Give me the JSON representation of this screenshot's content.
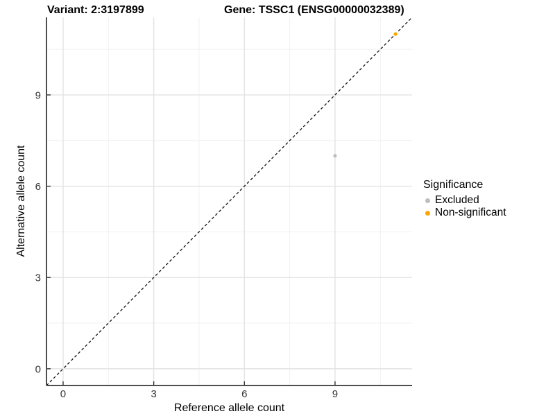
{
  "chart_data": {
    "type": "scatter",
    "titles": [
      "Variant: 2:3197899",
      "Gene: TSSC1 (ENSG00000032389)"
    ],
    "xlabel": "Reference allele count",
    "ylabel": "Alternative allele count",
    "xlim": [
      0,
      11
    ],
    "ylim": [
      0,
      11
    ],
    "expand_frac": 0.05,
    "major_ticks": [
      0,
      3,
      6,
      9
    ],
    "minor_ticks": [
      1.5,
      4.5,
      7.5,
      10.5
    ],
    "grid": "major+minor",
    "background": "#ffffff",
    "identity_line": {
      "slope": 1,
      "intercept": 0,
      "style": "dashed",
      "color": "#111111"
    },
    "legend": {
      "title": "Significance",
      "position": "right"
    },
    "series": [
      {
        "name": "Excluded",
        "color": "#BEBEBE",
        "points": [
          {
            "x": 9,
            "y": 7
          }
        ]
      },
      {
        "name": "Non-significant",
        "color": "#FFA500",
        "points": [
          {
            "x": 11,
            "y": 11
          }
        ]
      }
    ]
  }
}
